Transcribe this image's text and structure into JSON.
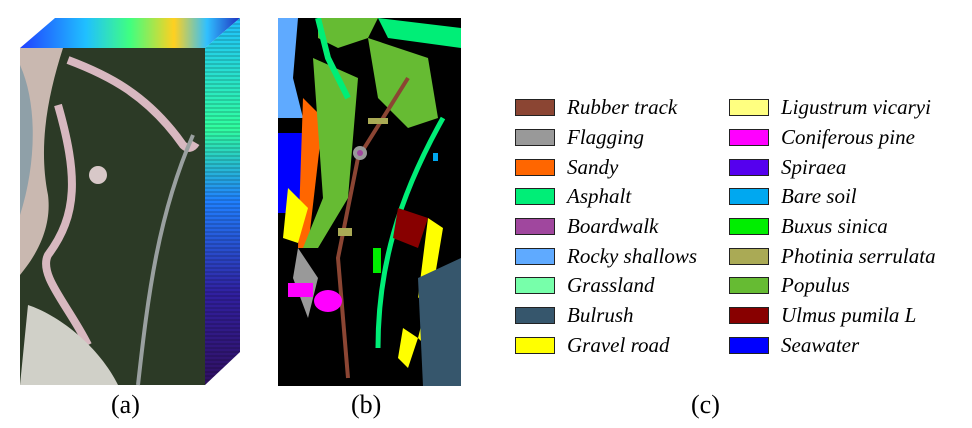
{
  "captions": {
    "a": "(a)",
    "b": "(b)",
    "c": "(c)"
  },
  "legend": {
    "left": [
      {
        "label": "Rubber track",
        "color": "#8B4533"
      },
      {
        "label": "Flagging",
        "color": "#999999"
      },
      {
        "label": "Sandy",
        "color": "#FF6600"
      },
      {
        "label": "Asphalt",
        "color": "#00EE77"
      },
      {
        "label": "Boardwalk",
        "color": "#A0479E"
      },
      {
        "label": "Rocky shallows",
        "color": "#5FAAFF"
      },
      {
        "label": "Grassland",
        "color": "#77FFAA"
      },
      {
        "label": "Bulrush",
        "color": "#36566C"
      },
      {
        "label": "Gravel road",
        "color": "#FFFF00"
      }
    ],
    "right": [
      {
        "label": "Ligustrum vicaryi",
        "color": "#FFFF80"
      },
      {
        "label": "Coniferous pine",
        "color": "#FF00FF"
      },
      {
        "label": "Spiraea",
        "color": "#5500EE"
      },
      {
        "label": "Bare soil",
        "color": "#00A8F0"
      },
      {
        "label": "Buxus sinica",
        "color": "#00EE00"
      },
      {
        "label": "Photinia serrulata",
        "color": "#AAAA55"
      },
      {
        "label": "Populus",
        "color": "#66BB33"
      },
      {
        "label": "Ulmus pumila L",
        "color": "#880000"
      },
      {
        "label": "Seawater",
        "color": "#0000FF"
      }
    ]
  }
}
